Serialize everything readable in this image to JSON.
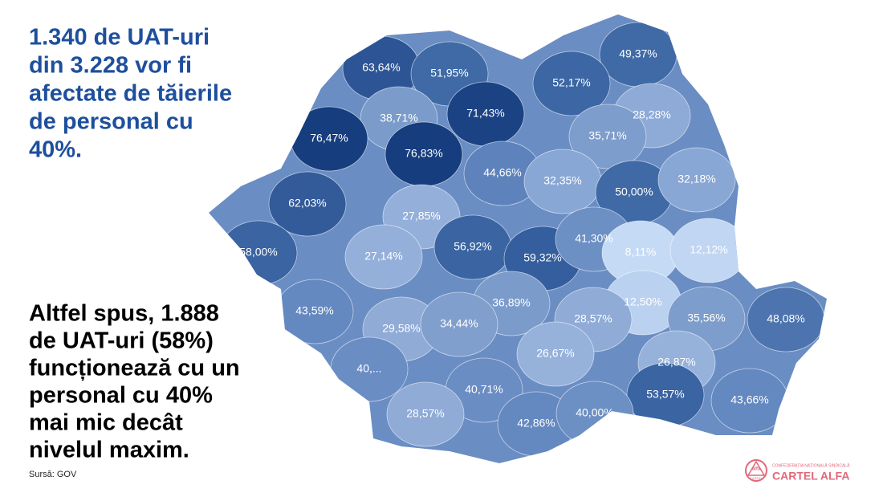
{
  "title_lines": [
    "1.340 de UAT-uri",
    "din 3.228 vor fi",
    "afectate de tăierile",
    "de personal cu",
    "40%."
  ],
  "body_lines": [
    "Altfel spus, 1.888",
    "de UAT-uri (58%)",
    "funcționează cu un",
    "personal cu 40%",
    "mai mic decât",
    "nivelul maxim."
  ],
  "source": "Sursă: GOV",
  "map_labels": [
    "63,64%",
    "51,95%",
    "49,37%",
    "52,17%",
    "38,71%",
    "71,43%",
    "28,28%",
    "76,47%",
    "76,83%",
    "35,71%",
    "44,66%",
    "32,35%",
    "50,00%",
    "32,18%",
    "62,03%",
    "27,85%",
    "56,92%",
    "59,32%",
    "41,30%",
    "8,11%",
    "12,12%",
    "58,00%",
    "27,14%",
    "43,59%",
    "36,89%",
    "12,50%",
    "29,58%",
    "34,44%",
    "28,57%",
    "35,56%",
    "48,08%",
    "40,...",
    "26,67%",
    "26,87%",
    "40,71%",
    "53,57%",
    "28,57%",
    "42,86%",
    "40,00%",
    "43,66%"
  ],
  "logo": {
    "icon_top": "alfa",
    "icon_bottom": "CARTEL",
    "tagline": "CONFEDERAȚIA NAȚIONALĂ SINDICALĂ",
    "name": "CARTEL ALFA"
  }
}
